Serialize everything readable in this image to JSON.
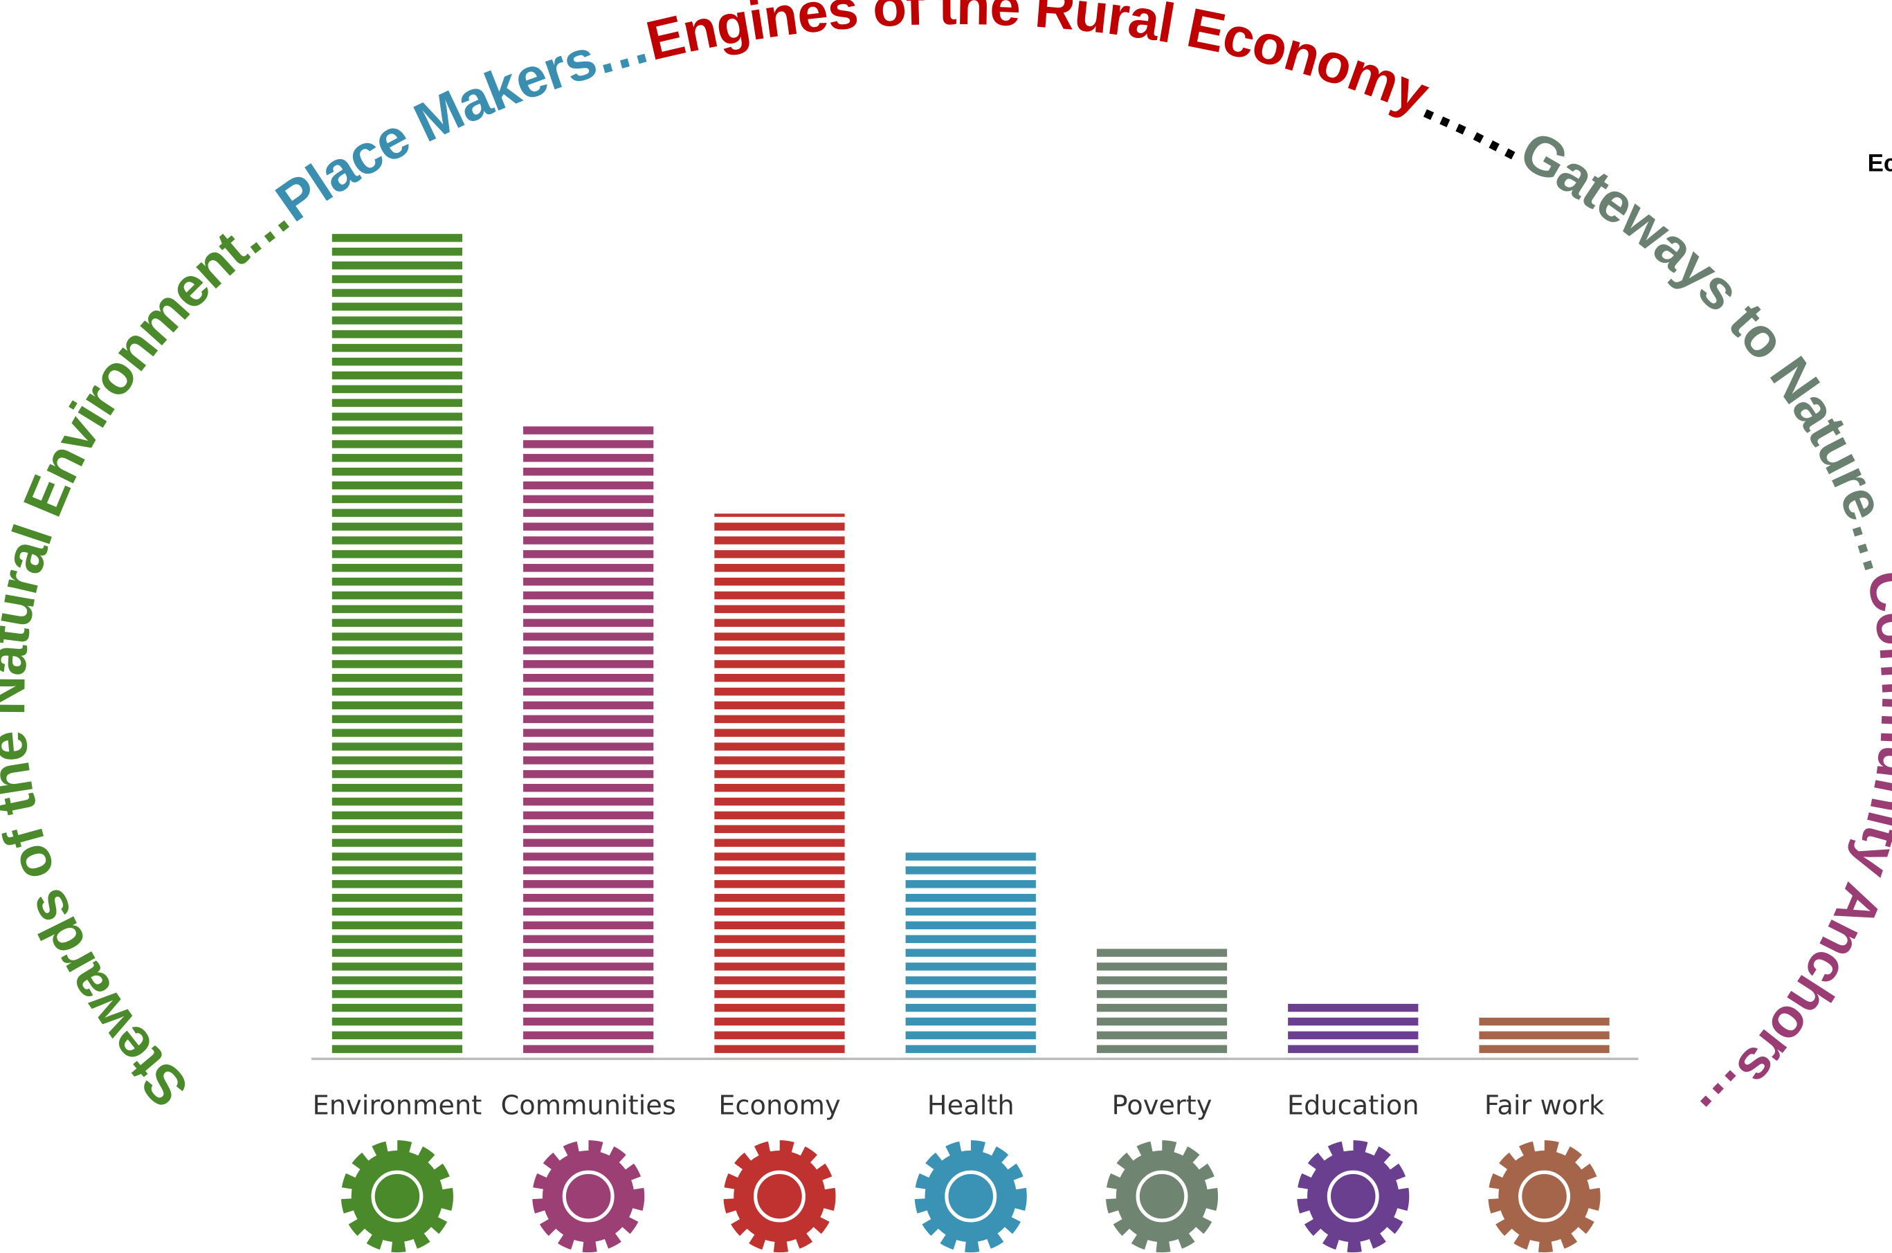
{
  "chart_data": {
    "type": "bar",
    "categories": [
      "Environment",
      "Communities",
      "Economy",
      "Health",
      "Poverty",
      "Education",
      "Fair work"
    ],
    "values": [
      100,
      77,
      66,
      25,
      14,
      7,
      5
    ],
    "colors": [
      "#4a8a2a",
      "#9b3f75",
      "#c0322f",
      "#3a92b4",
      "#6f8572",
      "#6a3f8f",
      "#a5654a"
    ],
    "ylim": [
      0,
      100
    ],
    "annotations": [
      {
        "text": "Stewards of the Natural Environment…",
        "color": "#4a8a2a"
      },
      {
        "text": "Place Makers…",
        "color": "#3a8fb0"
      },
      {
        "text": "Engines of the Rural Economy",
        "color": "#c00000"
      },
      {
        "text": "……",
        "color": "#000000"
      },
      {
        "text": "Gateways to Nature…",
        "color": "#6a8070"
      },
      {
        "text": "Community Anchors…",
        "color": "#9b3d75"
      }
    ],
    "fragment_text": "Ec"
  }
}
